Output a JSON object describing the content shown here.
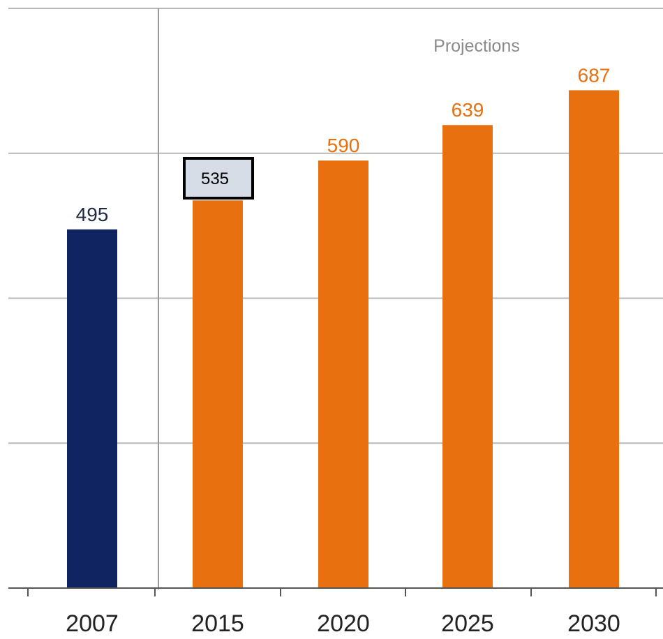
{
  "chart_data": {
    "type": "bar",
    "title": "",
    "xlabel": "",
    "ylabel": "",
    "ylim": [
      0,
      800
    ],
    "grid": true,
    "categories": [
      "2007",
      "2015",
      "2020",
      "2025",
      "2030"
    ],
    "values": [
      495,
      535,
      590,
      639,
      687
    ],
    "data_labels": [
      "495",
      "",
      "590",
      "639",
      "687"
    ],
    "bar_colors": [
      "#0f2460",
      "#e8700f",
      "#e8700f",
      "#e8700f",
      "#e8700f"
    ],
    "label_colors": [
      "#1f2a44",
      "#e8700f",
      "#e8700f",
      "#e8700f",
      "#e8700f"
    ],
    "annotations": {
      "section_label": "Projections",
      "boxed_label": "535"
    }
  }
}
